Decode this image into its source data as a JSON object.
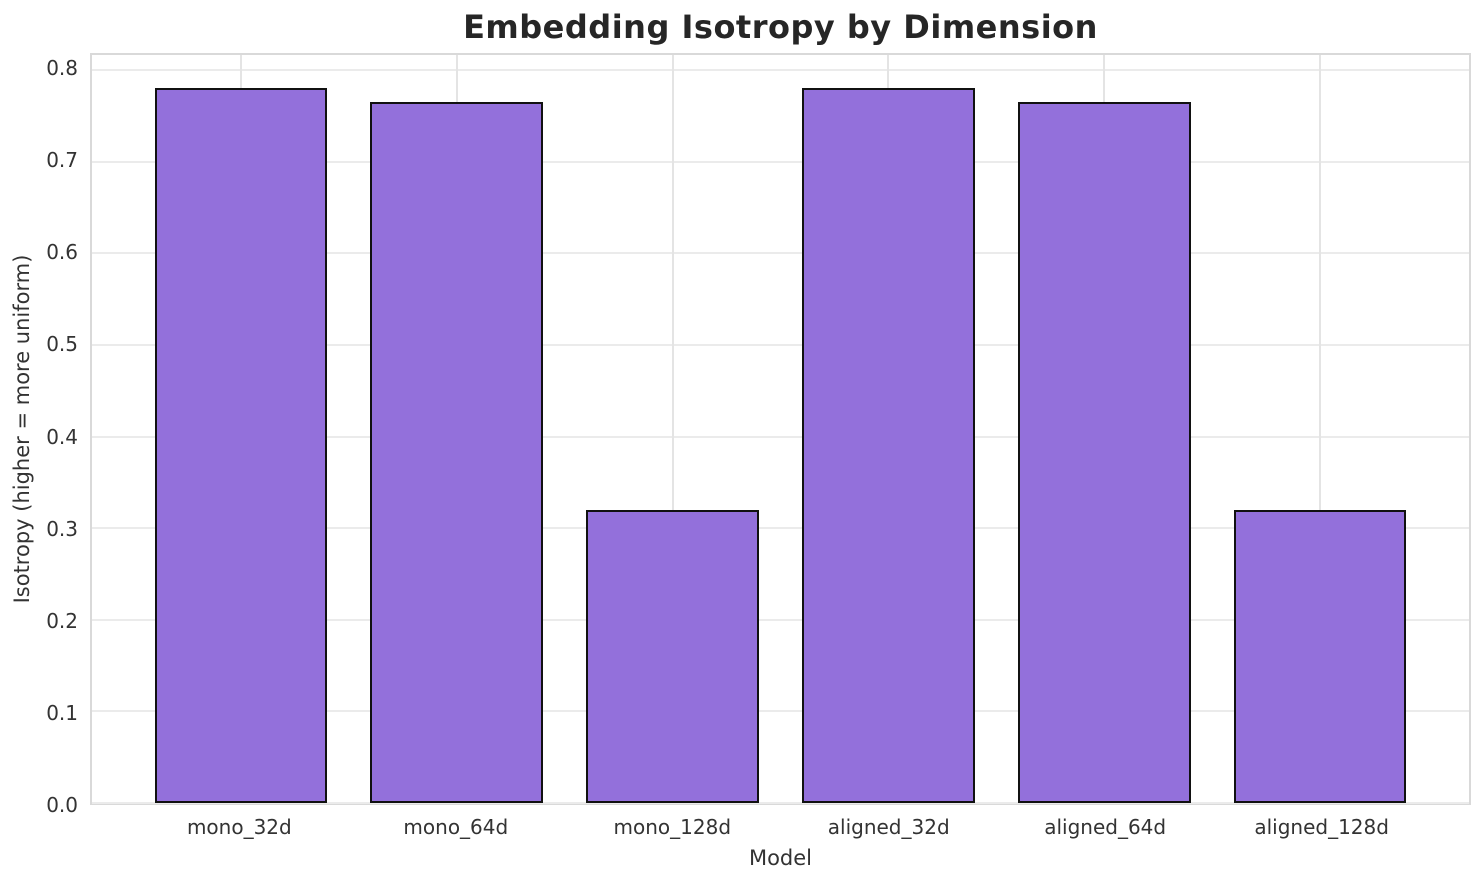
{
  "chart_data": {
    "type": "bar",
    "title": "Embedding Isotropy by Dimension",
    "xlabel": "Model",
    "ylabel": "Isotropy (higher = more uniform)",
    "categories": [
      "mono_32d",
      "mono_64d",
      "mono_128d",
      "aligned_32d",
      "aligned_64d",
      "aligned_128d"
    ],
    "values": [
      0.78,
      0.765,
      0.32,
      0.78,
      0.765,
      0.32
    ],
    "ylim": [
      0,
      0.8165
    ],
    "xlim": [
      -0.69,
      5.69
    ],
    "bar_width": 0.8,
    "yticks": [
      0.0,
      0.1,
      0.2,
      0.3,
      0.4,
      0.5,
      0.6,
      0.7,
      0.8
    ],
    "ytick_labels": [
      "0.0",
      "0.1",
      "0.2",
      "0.3",
      "0.4",
      "0.5",
      "0.6",
      "0.7",
      "0.8"
    ],
    "grid": true,
    "legend": "none",
    "colors": {
      "bar_fill": "#9370DB",
      "bar_edge": "#111111",
      "grid_horizontal": "#ebebeb",
      "grid_vertical": "#e4e4e4",
      "spine": "#d9d9d9",
      "title_text": "#262626",
      "tick_text": "#333333",
      "background": "#ffffff"
    }
  }
}
